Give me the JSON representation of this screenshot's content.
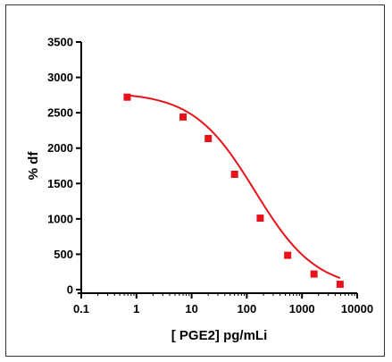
{
  "chart_data": {
    "type": "scatter",
    "title": "",
    "xlabel": "[ PGE2] pg/mLi",
    "ylabel": "% df",
    "xscale": "log",
    "xlim": [
      0.1,
      10000
    ],
    "ylim": [
      0,
      3500
    ],
    "x_ticks": [
      0.1,
      1,
      10,
      100,
      1000,
      10000
    ],
    "x_tick_labels": [
      "0.1",
      "1",
      "10",
      "100",
      "1000",
      "10000"
    ],
    "y_ticks": [
      0,
      500,
      1000,
      1500,
      2000,
      2500,
      3000,
      3500
    ],
    "y_tick_labels": [
      "0",
      "500",
      "1000",
      "1500",
      "2000",
      "2500",
      "3000",
      "3500"
    ],
    "grid": false,
    "legend": "none",
    "colors": {
      "series": "#e8121b",
      "axis": "#000000"
    },
    "series": [
      {
        "marker": "square",
        "fit": "sigmoidal",
        "points": [
          {
            "x": 0.68,
            "y": 2720
          },
          {
            "x": 7,
            "y": 2440
          },
          {
            "x": 20,
            "y": 2135
          },
          {
            "x": 60,
            "y": 1630
          },
          {
            "x": 175,
            "y": 1010
          },
          {
            "x": 550,
            "y": 485
          },
          {
            "x": 1650,
            "y": 220
          },
          {
            "x": 4900,
            "y": 75
          }
        ]
      }
    ]
  }
}
